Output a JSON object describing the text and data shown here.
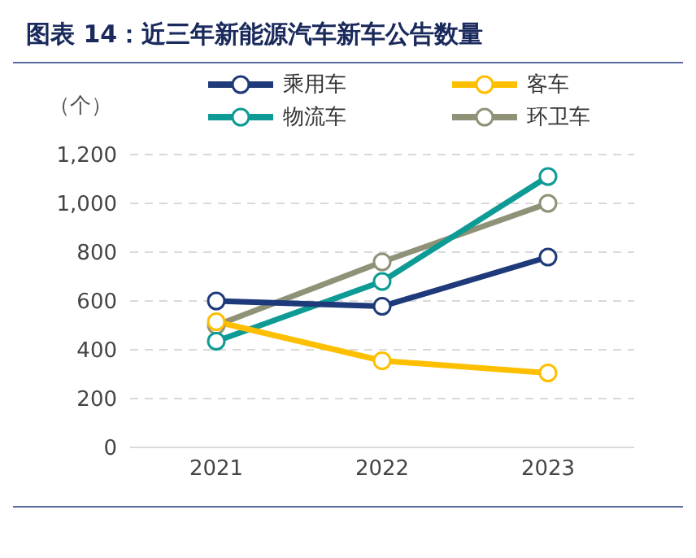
{
  "chart_data": {
    "type": "line",
    "title": "图表 14：近三年新能源汽车新车公告数量",
    "ylabel": "（个）",
    "categories": [
      "2021",
      "2022",
      "2023"
    ],
    "series": [
      {
        "name": "乘用车",
        "color": "#1f3a7a",
        "values": [
          600,
          578,
          780
        ]
      },
      {
        "name": "客车",
        "color": "#fdbf00",
        "values": [
          515,
          355,
          305
        ]
      },
      {
        "name": "物流车",
        "color": "#0e9b95",
        "values": [
          435,
          680,
          1110
        ]
      },
      {
        "name": "环卫车",
        "color": "#8f9277",
        "values": [
          500,
          760,
          1000
        ]
      }
    ],
    "ylim": [
      0,
      1200
    ],
    "yticks": [
      0,
      200,
      400,
      600,
      800,
      {
        "value": 1000,
        "label": "1,000"
      },
      {
        "value": 1200,
        "label": "1,200"
      }
    ],
    "grid": "y",
    "legend": "top",
    "marker": "circle",
    "line_style": "solid"
  }
}
